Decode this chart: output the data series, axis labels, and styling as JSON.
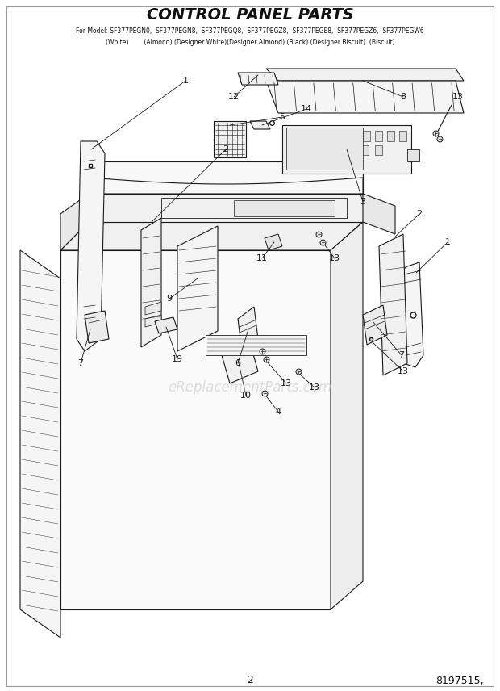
{
  "title": "CONTROL PANEL PARTS",
  "model_line": "For Model: SF377PEGN0,  SF377PEGN8,  SF377PEGQ8,  SF377PEGZ8,  SF377PEGE8,  SF377PEGZ6,  SF377PEGW6",
  "color_line": "(White)        (Almond) (Designer White)(Designer Almond) (Black) (Designer Biscuit)  (Biscuit)",
  "page_number": "2",
  "part_number": "8197515,",
  "watermark": "eReplacementParts.com",
  "bg": "#ffffff",
  "lc": "#1a1a1a",
  "wm_color": "#c8c8c8"
}
